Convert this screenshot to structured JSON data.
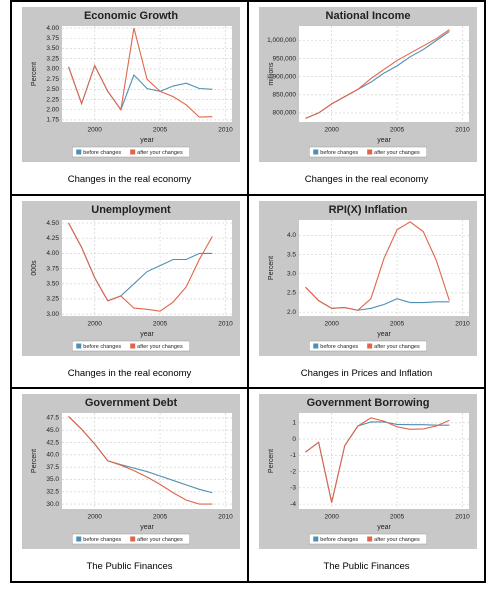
{
  "chart_data": [
    {
      "type": "line",
      "title": "Economic Growth",
      "caption": "Changes in the real economy",
      "xlabel": "year",
      "ylabel": "Percent",
      "x": [
        1998,
        1999,
        2000,
        2001,
        2002,
        2003,
        2004,
        2005,
        2006,
        2007,
        2008,
        2009
      ],
      "xlim": [
        1997.5,
        2010.5
      ],
      "xticks": [
        2000,
        2005,
        2010
      ],
      "ylim": [
        1.7,
        4.05
      ],
      "yticks": [
        1.75,
        {
          "value": 2,
          "label": "2.00"
        },
        2.25,
        {
          "value": 2.5,
          "label": "2.50"
        },
        2.75,
        {
          "value": 3,
          "label": "3.00"
        },
        3.25,
        {
          "value": 3.5,
          "label": "3.50"
        },
        3.75,
        {
          "value": 4,
          "label": "4.00"
        }
      ],
      "grid": true,
      "series": [
        {
          "name": "before changes",
          "color": "#4f8fb5",
          "values": [
            3.05,
            2.15,
            3.08,
            2.45,
            2.0,
            2.85,
            2.52,
            2.45,
            2.58,
            2.65,
            2.52,
            2.5
          ]
        },
        {
          "name": "after your changes",
          "color": "#e0654a",
          "values": [
            3.05,
            2.15,
            3.08,
            2.45,
            2.0,
            4.0,
            2.75,
            2.45,
            2.32,
            2.12,
            1.82,
            1.83
          ]
        }
      ]
    },
    {
      "type": "line",
      "title": "National Income",
      "caption": "Changes in the real economy",
      "xlabel": "year",
      "ylabel": "millions",
      "x": [
        1998,
        1999,
        2000,
        2001,
        2002,
        2003,
        2004,
        2005,
        2006,
        2007,
        2008,
        2009
      ],
      "xlim": [
        1997.5,
        2010.5
      ],
      "xticks": [
        2000,
        2005,
        2010
      ],
      "ylim": [
        775000,
        1040000
      ],
      "yticks": [
        {
          "value": 800000,
          "label": "800,000"
        },
        {
          "value": 850000,
          "label": "850,000"
        },
        {
          "value": 900000,
          "label": "900,000"
        },
        {
          "value": 950000,
          "label": "950,000"
        },
        {
          "value": 1000000,
          "label": "1,000,000"
        }
      ],
      "grid": true,
      "series": [
        {
          "name": "before changes",
          "color": "#4f8fb5",
          "values": [
            785000,
            800000,
            825000,
            845000,
            865000,
            885000,
            910000,
            930000,
            955000,
            975000,
            1000000,
            1025000
          ]
        },
        {
          "name": "after your changes",
          "color": "#e0654a",
          "values": [
            785000,
            800000,
            825000,
            845000,
            865000,
            895000,
            920000,
            945000,
            965000,
            985000,
            1005000,
            1030000
          ]
        }
      ]
    },
    {
      "type": "line",
      "title": "Unemployment",
      "caption": "Changes in the real economy",
      "xlabel": "year",
      "ylabel": "000s",
      "x": [
        1998,
        1999,
        2000,
        2001,
        2002,
        2003,
        2004,
        2005,
        2006,
        2007,
        2008,
        2009
      ],
      "xlim": [
        1997.5,
        2010.5
      ],
      "xticks": [
        2000,
        2005,
        2010
      ],
      "ylim": [
        2.97,
        4.55
      ],
      "yticks": [
        {
          "value": 3,
          "label": "3.00"
        },
        3.25,
        {
          "value": 3.5,
          "label": "3.50"
        },
        3.75,
        {
          "value": 4,
          "label": "4.00"
        },
        4.25,
        {
          "value": 4.5,
          "label": "4.50"
        }
      ],
      "grid": true,
      "series": [
        {
          "name": "before changes",
          "color": "#4f8fb5",
          "values": [
            4.5,
            4.1,
            3.6,
            3.22,
            3.3,
            3.5,
            3.7,
            3.8,
            3.9,
            3.9,
            4.0,
            4.0
          ]
        },
        {
          "name": "after your changes",
          "color": "#e0654a",
          "values": [
            4.5,
            4.1,
            3.6,
            3.22,
            3.3,
            3.1,
            3.08,
            3.05,
            3.2,
            3.45,
            3.9,
            4.28
          ]
        }
      ]
    },
    {
      "type": "line",
      "title": "RPI(X) Inflation",
      "caption": "Changes in Prices and Inflation",
      "xlabel": "year",
      "ylabel": "Percent",
      "x": [
        1998,
        1999,
        2000,
        2001,
        2002,
        2003,
        2004,
        2005,
        2006,
        2007,
        2008,
        2009
      ],
      "xlim": [
        1997.5,
        2010.5
      ],
      "xticks": [
        2000,
        2005,
        2010
      ],
      "ylim": [
        1.9,
        4.4
      ],
      "yticks": [
        {
          "value": 2,
          "label": "2.0"
        },
        2.5,
        {
          "value": 3,
          "label": "3.0"
        },
        3.5,
        {
          "value": 4,
          "label": "4.0"
        }
      ],
      "grid": true,
      "series": [
        {
          "name": "before changes",
          "color": "#4f8fb5",
          "values": [
            2.65,
            2.3,
            2.1,
            2.12,
            2.05,
            2.1,
            2.2,
            2.35,
            2.25,
            2.25,
            2.27,
            2.27
          ]
        },
        {
          "name": "after your changes",
          "color": "#e0654a",
          "values": [
            2.65,
            2.3,
            2.1,
            2.12,
            2.05,
            2.35,
            3.4,
            4.15,
            4.35,
            4.1,
            3.35,
            2.3
          ]
        }
      ]
    },
    {
      "type": "line",
      "title": "Government Debt",
      "caption": "The Public Finances",
      "xlabel": "year",
      "ylabel": "Percent",
      "x": [
        1998,
        1999,
        2000,
        2001,
        2002,
        2003,
        2004,
        2005,
        2006,
        2007,
        2008,
        2009
      ],
      "xlim": [
        1997.5,
        2010.5
      ],
      "xticks": [
        2000,
        2005,
        2010
      ],
      "ylim": [
        29,
        48.5
      ],
      "yticks": [
        {
          "value": 30,
          "label": "30.0"
        },
        32.5,
        {
          "value": 35,
          "label": "35.0"
        },
        37.5,
        {
          "value": 40,
          "label": "40.0"
        },
        42.5,
        {
          "value": 45,
          "label": "45.0"
        },
        47.5
      ],
      "grid": true,
      "series": [
        {
          "name": "before changes",
          "color": "#4f8fb5",
          "values": [
            47.8,
            45.2,
            42.2,
            38.8,
            38.0,
            37.3,
            36.6,
            35.7,
            34.8,
            33.9,
            33.0,
            32.3
          ]
        },
        {
          "name": "after your changes",
          "color": "#e0654a",
          "values": [
            47.8,
            45.2,
            42.2,
            38.8,
            37.9,
            36.8,
            35.5,
            34.0,
            32.3,
            30.8,
            30.0,
            30.0
          ]
        }
      ]
    },
    {
      "type": "line",
      "title": "Government Borrowing",
      "caption": "The Public Finances",
      "xlabel": "year",
      "ylabel": "Percent",
      "x": [
        1998,
        1999,
        2000,
        2001,
        2002,
        2003,
        2004,
        2005,
        2006,
        2007,
        2008,
        2009
      ],
      "xlim": [
        1997.5,
        2010.5
      ],
      "xticks": [
        2000,
        2005,
        2010
      ],
      "ylim": [
        -4.3,
        1.6
      ],
      "yticks": [
        -4,
        -3,
        -2,
        -1,
        0,
        1
      ],
      "grid": true,
      "series": [
        {
          "name": "before changes",
          "color": "#4f8fb5",
          "values": [
            -0.8,
            -0.2,
            -3.9,
            -0.4,
            0.8,
            1.05,
            1.05,
            0.9,
            0.88,
            0.88,
            0.85,
            0.85
          ]
        },
        {
          "name": "after your changes",
          "color": "#e0654a",
          "values": [
            -0.8,
            -0.2,
            -3.9,
            -0.4,
            0.8,
            1.3,
            1.1,
            0.75,
            0.6,
            0.62,
            0.8,
            1.15
          ]
        }
      ]
    }
  ]
}
